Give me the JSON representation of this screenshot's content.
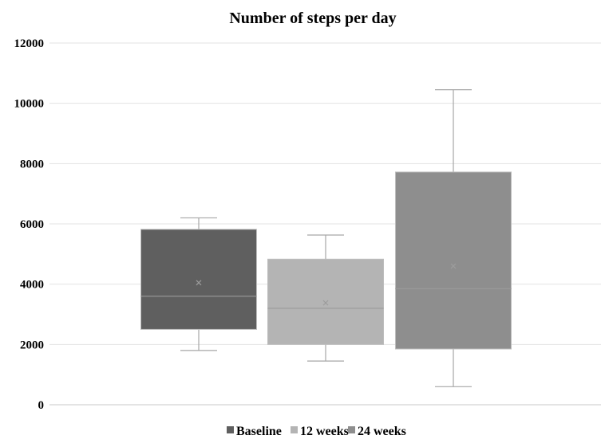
{
  "chart_data": {
    "type": "box",
    "title": "Number of steps per day",
    "xlabel": "",
    "ylabel": "",
    "ylim": [
      0,
      12000
    ],
    "yticks": [
      0,
      2000,
      4000,
      6000,
      8000,
      10000,
      12000
    ],
    "grid": true,
    "legend_position": "bottom",
    "series": [
      {
        "name": "Baseline",
        "color": "#5f5f5f",
        "min": 1800,
        "q1": 2500,
        "median": 3600,
        "q3": 5820,
        "max": 6200,
        "mean": 4050
      },
      {
        "name": "12 weeks",
        "color": "#b4b4b4",
        "min": 1450,
        "q1": 2000,
        "median": 3200,
        "q3": 4830,
        "max": 5630,
        "mean": 3380
      },
      {
        "name": "24 weeks",
        "color": "#8e8e8e",
        "min": 600,
        "q1": 1850,
        "median": 3850,
        "q3": 7720,
        "max": 10450,
        "mean": 4600
      }
    ]
  }
}
